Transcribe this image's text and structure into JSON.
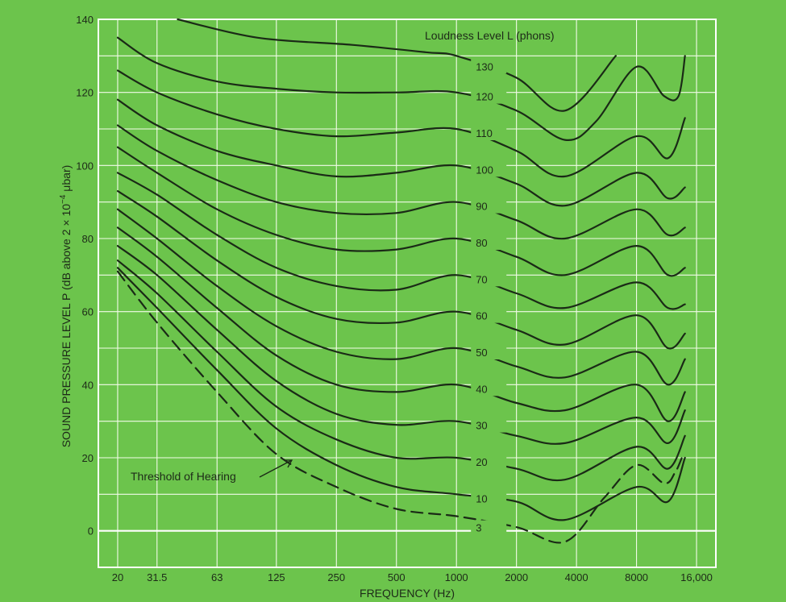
{
  "chart_data": {
    "type": "line",
    "title": "",
    "xlabel": "FREQUENCY (Hz)",
    "ylabel_parts": [
      "SOUND PRESSURE LEVEL P (dB above 2 × 10",
      "−4",
      " μbar)"
    ],
    "x_scale": "log",
    "xlim": [
      16,
      20000
    ],
    "ylim": [
      -10,
      140
    ],
    "x_ticks": [
      {
        "value": 20,
        "label": "20"
      },
      {
        "value": 31.5,
        "label": "31.5"
      },
      {
        "value": 63,
        "label": "63"
      },
      {
        "value": 125,
        "label": "125"
      },
      {
        "value": 250,
        "label": "250"
      },
      {
        "value": 500,
        "label": "500"
      },
      {
        "value": 1000,
        "label": "1000"
      },
      {
        "value": 2000,
        "label": "2000"
      },
      {
        "value": 4000,
        "label": "4000"
      },
      {
        "value": 8000,
        "label": "8000"
      },
      {
        "value": 16000,
        "label": "16,000"
      }
    ],
    "y_ticks": [
      0,
      20,
      40,
      60,
      80,
      100,
      120,
      140
    ],
    "grid": true,
    "legend_title": "Loudness Level L (phons)",
    "annotation": "Threshold of Hearing",
    "series": [
      {
        "name": "130",
        "x": [
          40,
          100,
          300,
          700,
          1000,
          2000,
          3500,
          6300
        ],
        "y": [
          140,
          135,
          133,
          131,
          130,
          124,
          115,
          130
        ]
      },
      {
        "name": "120",
        "x": [
          20,
          31.5,
          63,
          125,
          250,
          500,
          1000,
          2000,
          3500,
          5000,
          8000,
          11000,
          13000,
          14000
        ],
        "y": [
          135,
          128,
          123,
          121,
          120,
          120,
          120,
          115,
          107,
          112,
          127,
          119,
          119,
          130
        ]
      },
      {
        "name": "110",
        "x": [
          20,
          31.5,
          63,
          125,
          250,
          500,
          1000,
          2000,
          3500,
          8000,
          11500,
          14000
        ],
        "y": [
          126,
          120,
          114,
          110,
          108,
          109,
          110,
          104,
          97,
          108,
          102,
          113
        ]
      },
      {
        "name": "100",
        "x": [
          20,
          31.5,
          63,
          125,
          250,
          500,
          1000,
          2000,
          3500,
          8000,
          11500,
          14000
        ],
        "y": [
          118,
          111,
          104,
          100,
          97,
          98,
          100,
          95,
          89,
          98,
          91,
          94
        ]
      },
      {
        "name": "90",
        "x": [
          20,
          31.5,
          63,
          125,
          250,
          500,
          1000,
          2000,
          3500,
          8000,
          11500,
          14000
        ],
        "y": [
          111,
          104,
          96,
          90,
          87,
          87,
          90,
          85,
          80,
          88,
          81,
          83
        ]
      },
      {
        "name": "80",
        "x": [
          20,
          31.5,
          63,
          125,
          250,
          500,
          1000,
          2000,
          3500,
          8000,
          11500,
          14000
        ],
        "y": [
          105,
          98,
          88,
          81,
          77,
          77,
          80,
          75,
          70,
          78,
          70,
          72
        ]
      },
      {
        "name": "70",
        "x": [
          20,
          31.5,
          63,
          125,
          250,
          500,
          1000,
          2000,
          3500,
          8000,
          11500,
          14000
        ],
        "y": [
          98,
          92,
          81,
          72,
          67,
          66,
          70,
          65,
          61,
          68,
          61,
          62
        ]
      },
      {
        "name": "60",
        "x": [
          20,
          31.5,
          63,
          125,
          250,
          500,
          1000,
          2000,
          3500,
          8000,
          11500,
          14000
        ],
        "y": [
          93,
          86,
          74,
          64,
          58,
          57,
          60,
          55,
          51,
          59,
          50,
          54
        ]
      },
      {
        "name": "50",
        "x": [
          20,
          31.5,
          63,
          125,
          250,
          500,
          1000,
          2000,
          3500,
          8000,
          11500,
          14000
        ],
        "y": [
          88,
          80,
          67,
          56,
          49,
          47,
          50,
          45,
          42,
          49,
          40,
          47
        ]
      },
      {
        "name": "40",
        "x": [
          20,
          31.5,
          63,
          125,
          250,
          500,
          1000,
          2000,
          3500,
          8000,
          11500,
          14000
        ],
        "y": [
          83,
          75,
          61,
          48,
          40,
          38,
          40,
          35,
          33,
          40,
          30,
          38
        ]
      },
      {
        "name": "30",
        "x": [
          20,
          31.5,
          63,
          125,
          250,
          500,
          1000,
          2000,
          3500,
          8000,
          11500,
          14000
        ],
        "y": [
          78,
          70,
          55,
          41,
          32,
          29,
          30,
          26,
          24,
          31,
          24,
          33
        ]
      },
      {
        "name": "20",
        "x": [
          20,
          31.5,
          63,
          125,
          250,
          500,
          1000,
          2000,
          3500,
          8000,
          11500,
          14000
        ],
        "y": [
          74,
          65,
          49,
          34,
          25,
          20,
          20,
          17,
          14,
          23,
          17,
          26
        ]
      },
      {
        "name": "10",
        "x": [
          20,
          31.5,
          63,
          125,
          250,
          500,
          1000,
          2000,
          3500,
          8000,
          11500,
          14000
        ],
        "y": [
          72,
          61,
          44,
          28,
          18,
          12,
          10,
          8,
          3,
          12,
          8,
          20
        ]
      },
      {
        "name": "3",
        "dashed": true,
        "x": [
          20,
          31.5,
          63,
          125,
          250,
          500,
          1000,
          2000,
          3500,
          5500,
          8000,
          11000,
          12500,
          13500
        ],
        "y": [
          71,
          57,
          38,
          21,
          12,
          6,
          4,
          1,
          -3,
          9,
          18,
          13,
          16,
          20
        ]
      }
    ]
  }
}
